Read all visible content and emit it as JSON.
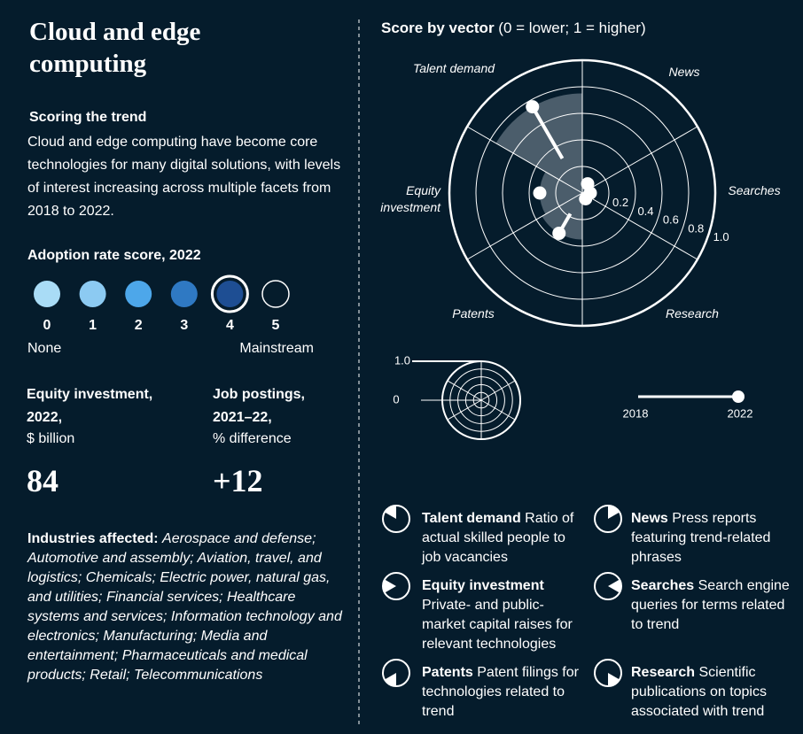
{
  "header": {
    "title": "Cloud and edge computing",
    "subtitle": "Scoring the trend",
    "description": "Cloud and edge computing have become core technologies for many digital solutions, with levels of interest increasing across multiple facets from 2018 to 2022."
  },
  "adoption": {
    "title": "Adoption rate score, 2022",
    "levels": [
      0,
      1,
      2,
      3,
      4,
      5
    ],
    "colors": [
      "#a9dcf6",
      "#8ccaf2",
      "#4da7ea",
      "#2f79c3",
      "#1e4e93",
      "#051c2c"
    ],
    "score": 4,
    "low_label": "None",
    "high_label": "Mainstream"
  },
  "equity": {
    "title": "Equity investment, 2022,",
    "unit": "$ billion",
    "value": 84
  },
  "jobs": {
    "title": "Job postings, 2021–22,",
    "unit": "% difference",
    "value": 12,
    "value_label": "+12"
  },
  "industries": {
    "label": "Industries affected:",
    "text": "Aerospace and defense; Automotive and assembly; Aviation, travel, and logistics; Chemicals; Electric power, natural gas, and utilities; Financial services; Healthcare systems and services; Information technology and electronics; Manufacturing; Media and entertainment; Pharmaceuticals and medical products; Retail; Telecommunications"
  },
  "chart_data": {
    "type": "polar",
    "title": "Score by vector",
    "subtitle": "(0 = lower; 1 = higher)",
    "categories": [
      "Talent demand",
      "News",
      "Searches",
      "Research",
      "Patents",
      "Equity investment"
    ],
    "series": [
      {
        "name": "2018",
        "color": "#ffffff",
        "values": [
          0.3,
          0.05,
          0.04,
          0.03,
          0.18,
          0.32
        ]
      },
      {
        "name": "2022",
        "color": "#ffffff",
        "values": [
          0.75,
          0.08,
          0.06,
          0.05,
          0.35,
          0.32
        ]
      }
    ],
    "area_color": "#4b5d6b",
    "rlim": [
      0,
      1
    ],
    "rticks": [
      0.2,
      0.4,
      0.6,
      0.8,
      {
        "value": 1,
        "label": "1.0"
      }
    ],
    "scale_ticks": [
      {
        "value": 1,
        "label": "1.0"
      },
      0
    ]
  },
  "vectors": [
    {
      "category": 0,
      "description": "Ratio of actual skilled people to job vacancies"
    },
    {
      "category": 1,
      "description": "Press reports featuring trend-related phrases"
    },
    {
      "category": 5,
      "description": "Private- and public-market capital raises for relevant technologies"
    },
    {
      "category": 2,
      "description": "Search engine queries for terms related to trend"
    },
    {
      "category": 4,
      "description": "Patent filings for technologies related to trend"
    },
    {
      "category": 3,
      "description": "Scientific publications on topics associated with trend"
    }
  ]
}
